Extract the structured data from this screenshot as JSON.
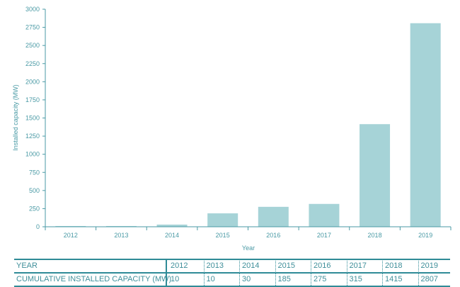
{
  "chart_data": {
    "type": "bar",
    "categories": [
      "2012",
      "2013",
      "2014",
      "2015",
      "2016",
      "2017",
      "2018",
      "2019"
    ],
    "values": [
      10,
      10,
      30,
      185,
      275,
      315,
      1415,
      2807
    ],
    "xlabel": "Year",
    "ylabel": "Installed capacity (MW)",
    "ylim": [
      0,
      3000
    ],
    "yticks": [
      0,
      250,
      500,
      750,
      1000,
      1250,
      1500,
      1750,
      2000,
      2250,
      2500,
      2750,
      3000
    ],
    "grid": false,
    "bar_color": "#a6d3d7",
    "axis_color": "#4a9aa5"
  },
  "table": {
    "row1_label": "YEAR",
    "row2_label": "CUMULATIVE INSTALLED CAPACITY (MW)",
    "years": [
      "2012",
      "2013",
      "2014",
      "2015",
      "2016",
      "2017",
      "2018",
      "2019"
    ],
    "capacities": [
      "10",
      "10",
      "30",
      "185",
      "275",
      "315",
      "1415",
      "2807"
    ],
    "rule_color": "#2f8b97"
  }
}
